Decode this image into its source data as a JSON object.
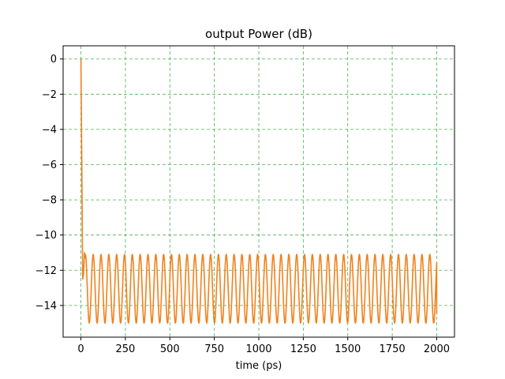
{
  "colors": {
    "grid": "#4caf50",
    "series": "#f0821e",
    "background": "#ffffff",
    "axes": "#000000"
  },
  "chart_data": {
    "type": "line",
    "title": "output Power (dB)",
    "xlabel": "time (ps)",
    "ylabel": "",
    "xlim": [
      -100,
      2100
    ],
    "ylim": [
      -15.8,
      0.75
    ],
    "x_ticks": [
      0,
      250,
      500,
      750,
      1000,
      1250,
      1500,
      1750,
      2000
    ],
    "x_tick_labels": [
      "0",
      "250",
      "500",
      "750",
      "1000",
      "1250",
      "1500",
      "1750",
      "2000"
    ],
    "y_ticks": [
      0,
      -2,
      -4,
      -6,
      -8,
      -10,
      -12,
      -14
    ],
    "y_tick_labels": [
      "0",
      "−2",
      "−4",
      "−6",
      "−8",
      "−10",
      "−12",
      "−14"
    ],
    "grid": true,
    "grid_style": "dashed",
    "legend": false,
    "series": [
      {
        "description": "initial drop from 0 dB followed by a steady oscillation between about -11.1 and -15.0 dB",
        "x": [
          0,
          5,
          10,
          15,
          20,
          25,
          40,
          2000
        ],
        "y": [
          0,
          -6,
          -12.5,
          -12.2,
          -11.0,
          -11.3,
          -15.0,
          -14.5
        ],
        "oscillation": {
          "start": 25,
          "end": 2000,
          "period": 44,
          "max": -11.1,
          "min": -15.0
        }
      }
    ]
  }
}
